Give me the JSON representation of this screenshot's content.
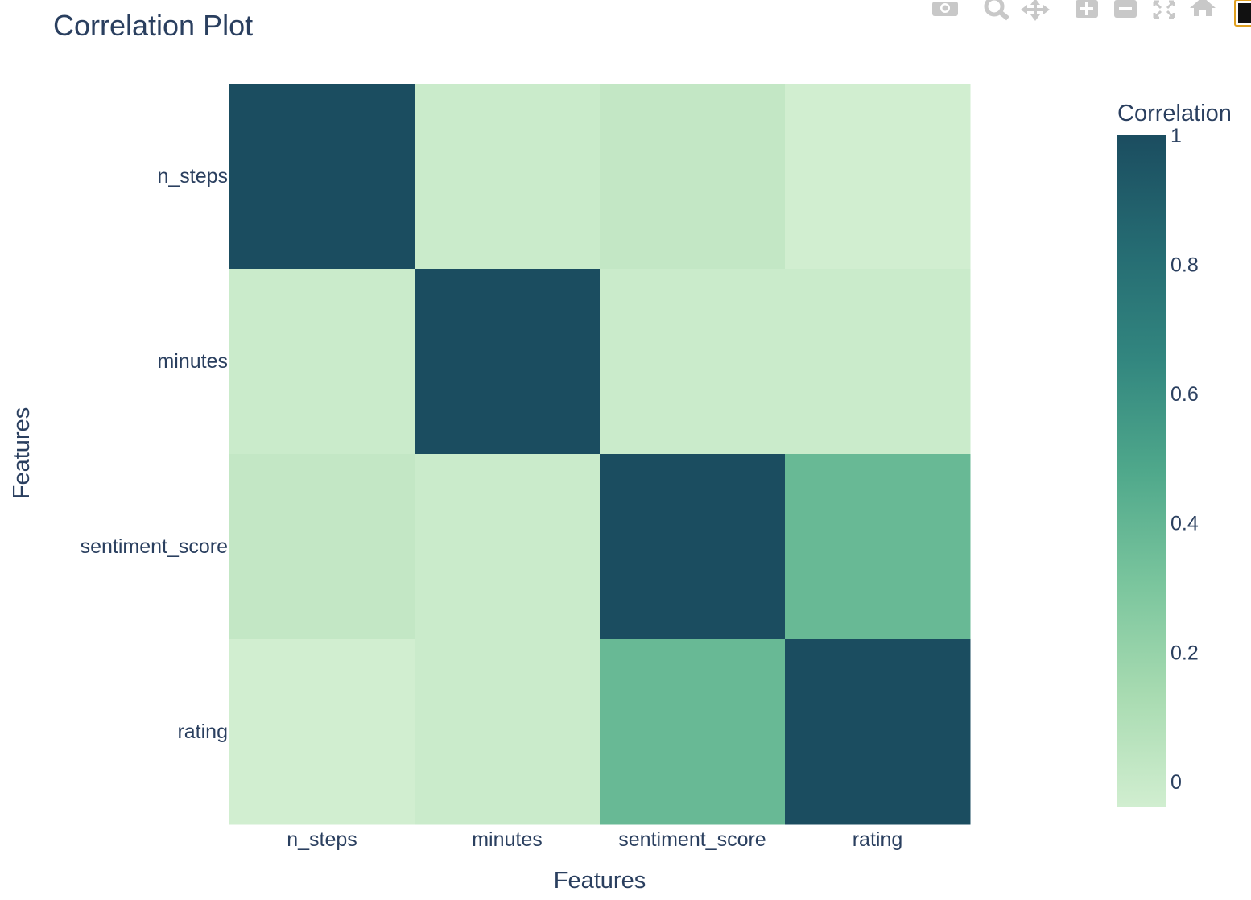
{
  "chart_data": {
    "type": "heatmap",
    "title": "Correlation Plot",
    "xlabel": "Features",
    "ylabel": "Features",
    "x_categories": [
      "n_steps",
      "minutes",
      "sentiment_score",
      "rating"
    ],
    "y_categories": [
      "n_steps",
      "minutes",
      "sentiment_score",
      "rating"
    ],
    "z": [
      [
        1.0,
        -0.01,
        0.02,
        -0.04
      ],
      [
        -0.01,
        1.0,
        -0.01,
        -0.01
      ],
      [
        0.02,
        -0.01,
        1.0,
        0.38
      ],
      [
        -0.04,
        -0.01,
        0.38,
        1.0
      ]
    ],
    "colorbar": {
      "title": "Correlation",
      "tickvals": [
        0,
        0.2,
        0.4,
        0.6,
        0.8,
        1
      ],
      "ticktext": [
        "0",
        "0.2",
        "0.4",
        "0.6",
        "0.8",
        "1"
      ],
      "range": [
        -0.04,
        1.0
      ]
    },
    "colorscale": [
      "#d1eed0",
      "#a8dbb1",
      "#7ac59d",
      "#4fa88b",
      "#32867f",
      "#256b72",
      "#1b4d60"
    ]
  },
  "modebar": {
    "icons": [
      "camera-icon",
      "zoom-icon",
      "pan-icon",
      "zoom-in-icon",
      "zoom-out-icon",
      "autoscale-icon",
      "home-icon"
    ]
  }
}
